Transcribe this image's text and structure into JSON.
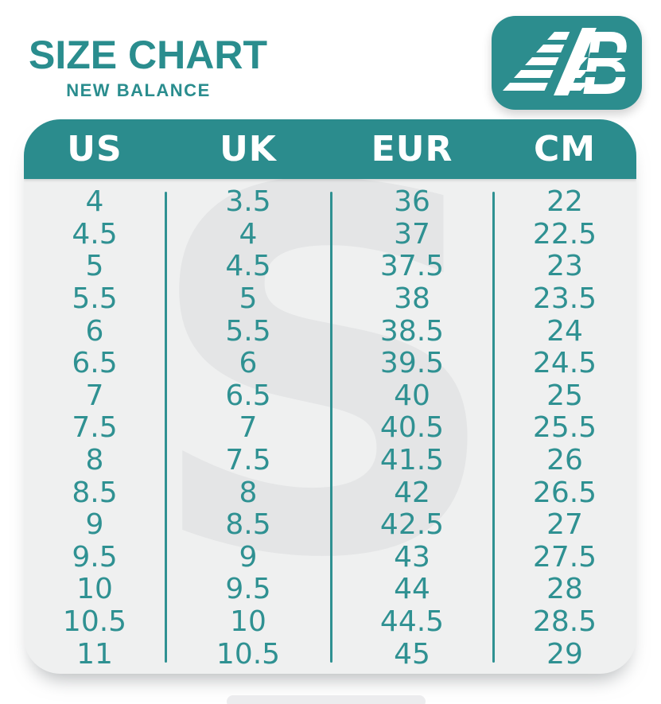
{
  "title": "SIZE CHART",
  "subtitle": "NEW BALANCE",
  "logo": {
    "icon": "new-balance-nb-logo",
    "letters": "NB"
  },
  "watermark_letter": "S",
  "colors": {
    "teal": "#2c8d8e",
    "teal_text": "#2f9192",
    "header_text": "#ffffff",
    "table_bg": "#eff0f0",
    "watermark_gray": "#e4e5e6",
    "page_bg": "#ffffff"
  },
  "chart_data": {
    "type": "table",
    "title": "SIZE CHART",
    "subtitle": "NEW BALANCE",
    "columns": [
      "US",
      "UK",
      "EUR",
      "CM"
    ],
    "rows": [
      [
        "4",
        "3.5",
        "36",
        "22"
      ],
      [
        "4.5",
        "4",
        "37",
        "22.5"
      ],
      [
        "5",
        "4.5",
        "37.5",
        "23"
      ],
      [
        "5.5",
        "5",
        "38",
        "23.5"
      ],
      [
        "6",
        "5.5",
        "38.5",
        "24"
      ],
      [
        "6.5",
        "6",
        "39.5",
        "24.5"
      ],
      [
        "7",
        "6.5",
        "40",
        "25"
      ],
      [
        "7.5",
        "7",
        "40.5",
        "25.5"
      ],
      [
        "8",
        "7.5",
        "41.5",
        "26"
      ],
      [
        "8.5",
        "8",
        "42",
        "26.5"
      ],
      [
        "9",
        "8.5",
        "42.5",
        "27"
      ],
      [
        "9.5",
        "9",
        "43",
        "27.5"
      ],
      [
        "10",
        "9.5",
        "44",
        "28"
      ],
      [
        "10.5",
        "10",
        "44.5",
        "28.5"
      ],
      [
        "11",
        "10.5",
        "45",
        "29"
      ]
    ]
  }
}
